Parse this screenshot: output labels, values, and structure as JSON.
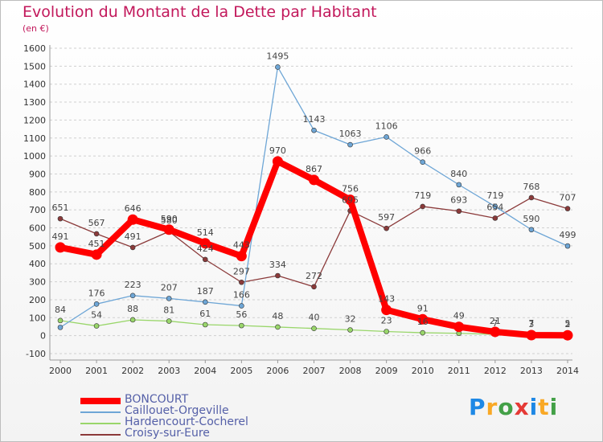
{
  "header": {
    "title": "Evolution du Montant de la Dette par Habitant",
    "subtitle": "(en €)"
  },
  "logo": {
    "text": "Proxiti"
  },
  "chart_data": {
    "type": "line",
    "title": "Evolution du Montant de la Dette par Habitant",
    "subtitle": "(en €)",
    "xlabel": "",
    "ylabel": "",
    "x": [
      "2000",
      "2001",
      "2002",
      "2003",
      "2004",
      "2005",
      "2006",
      "2007",
      "2008",
      "2009",
      "2010",
      "2011",
      "2012",
      "2013",
      "2014"
    ],
    "ylim": [
      -100,
      1600
    ],
    "yticks": [
      -100,
      0,
      100,
      200,
      300,
      400,
      500,
      600,
      700,
      800,
      900,
      1000,
      1100,
      1200,
      1300,
      1400,
      1500,
      1600
    ],
    "grid": "horizontal dashed",
    "legend_position": "bottom-left",
    "series": [
      {
        "name": "BONCOURT",
        "color": "#ff0000",
        "values": [
          491,
          451,
          646,
          590,
          514,
          443,
          970,
          867,
          756,
          143,
          91,
          49,
          21,
          3,
          2
        ]
      },
      {
        "name": "Caillouet-Orgeville",
        "color": "#6ea6d6",
        "values": [
          46,
          176,
          223,
          207,
          187,
          166,
          1495,
          1143,
          1063,
          1106,
          966,
          840,
          719,
          590,
          499
        ]
      },
      {
        "name": "Hardencourt-Cocherel",
        "color": "#99d66a",
        "values": [
          84,
          54,
          88,
          81,
          61,
          56,
          48,
          40,
          32,
          23,
          16,
          13,
          7,
          7,
          5
        ]
      },
      {
        "name": "Croisy-sur-Eure",
        "color": "#8b3a3a",
        "values": [
          651,
          567,
          491,
          580,
          424,
          297,
          334,
          272,
          695,
          597,
          719,
          693,
          654,
          768,
          707
        ]
      }
    ],
    "data_labels": [
      {
        "series": 0,
        "labels": [
          "491",
          "451",
          "646",
          "590",
          "514",
          "443",
          "970",
          "867",
          "756",
          "143",
          "91",
          "49",
          "21",
          "3",
          "2"
        ]
      },
      {
        "series": 1,
        "labels": [
          "",
          "176",
          "223",
          "207",
          "187",
          "166",
          "1495",
          "1143",
          "1063",
          "1106",
          "966",
          "840",
          "719",
          "590",
          "499"
        ]
      },
      {
        "series": 2,
        "labels": [
          "84",
          "54",
          "88",
          "81",
          "61",
          "56",
          "48",
          "40",
          "32",
          "23",
          "16",
          "",
          "7",
          "7",
          "5"
        ]
      },
      {
        "series": 3,
        "labels": [
          "651",
          "567",
          "491",
          "580",
          "424",
          "297",
          "334",
          "272",
          "695",
          "597",
          "719",
          "693",
          "654",
          "768",
          "707"
        ]
      }
    ]
  }
}
